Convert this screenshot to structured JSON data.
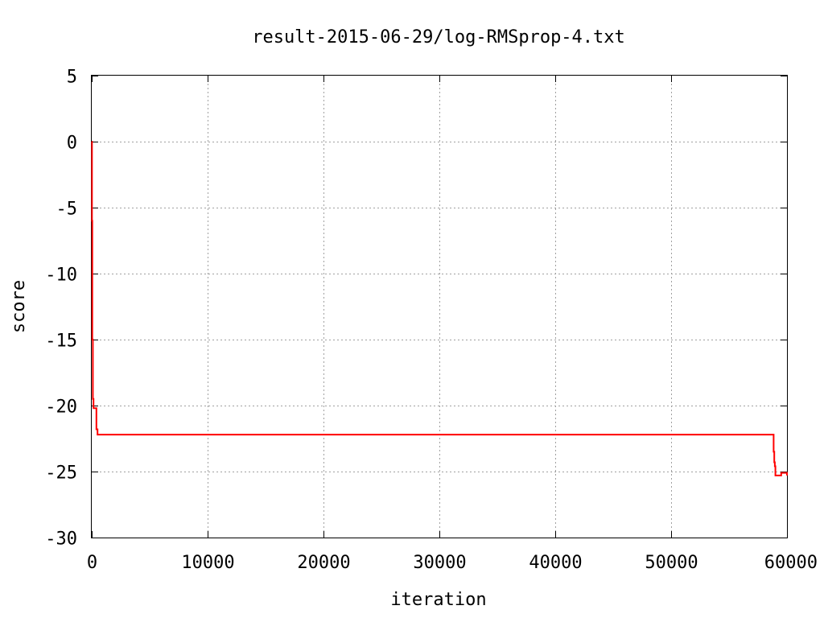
{
  "chart_data": {
    "type": "line",
    "title": "result-2015-06-29/log-RMSprop-4.txt",
    "xlabel": "iteration",
    "ylabel": "score",
    "xlim": [
      0,
      60000
    ],
    "ylim": [
      -30,
      5
    ],
    "xticks": [
      0,
      10000,
      20000,
      30000,
      40000,
      50000,
      60000
    ],
    "yticks": [
      -30,
      -25,
      -20,
      -15,
      -10,
      -5,
      0,
      5
    ],
    "grid": true,
    "series": [
      {
        "color": "#ff0000",
        "x": [
          0,
          20,
          50,
          100,
          150,
          200,
          300,
          400,
          500,
          600,
          1000,
          5000,
          10000,
          20000,
          30000,
          40000,
          50000,
          58800,
          58850,
          58900,
          58950,
          59000,
          59100,
          59500,
          60000
        ],
        "y": [
          0,
          -6,
          -15,
          -19.5,
          -20.2,
          -20.2,
          -20.2,
          -21.8,
          -22.2,
          -22.2,
          -22.2,
          -22.2,
          -22.2,
          -22.2,
          -22.2,
          -22.2,
          -22.2,
          -22.2,
          -23.5,
          -24.3,
          -24.6,
          -25.3,
          -25.3,
          -25.1,
          -25.3
        ]
      }
    ]
  }
}
